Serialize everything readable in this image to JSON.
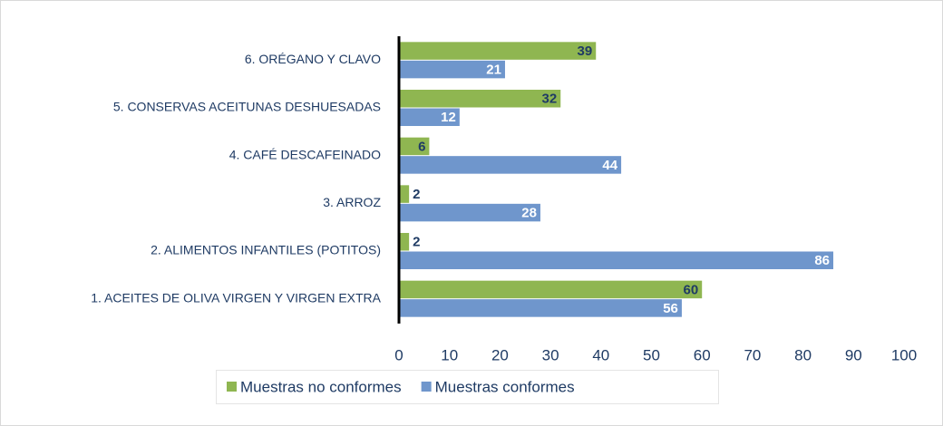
{
  "chart_data": {
    "type": "hbar",
    "categories": [
      "1. ACEITES DE OLIVA VIRGEN Y VIRGEN EXTRA",
      "2. ALIMENTOS INFANTILES (POTITOS)",
      "3. ARROZ",
      "4. CAFÉ DESCAFEINADO",
      "5. CONSERVAS ACEITUNAS DESHUESADAS",
      "6. ORÉGANO Y CLAVO"
    ],
    "series": [
      {
        "name": "Muestras no conformes",
        "color": "#8fb651",
        "values": [
          60,
          2,
          2,
          6,
          32,
          39
        ]
      },
      {
        "name": "Muestras conformes",
        "color": "#6f96cc",
        "values": [
          56,
          86,
          28,
          44,
          12,
          21
        ]
      }
    ],
    "xlim": [
      0,
      100
    ],
    "xticks": [
      0,
      10,
      20,
      30,
      40,
      50,
      60,
      70,
      80,
      90,
      100
    ],
    "grid": false,
    "legend": "bottom"
  }
}
